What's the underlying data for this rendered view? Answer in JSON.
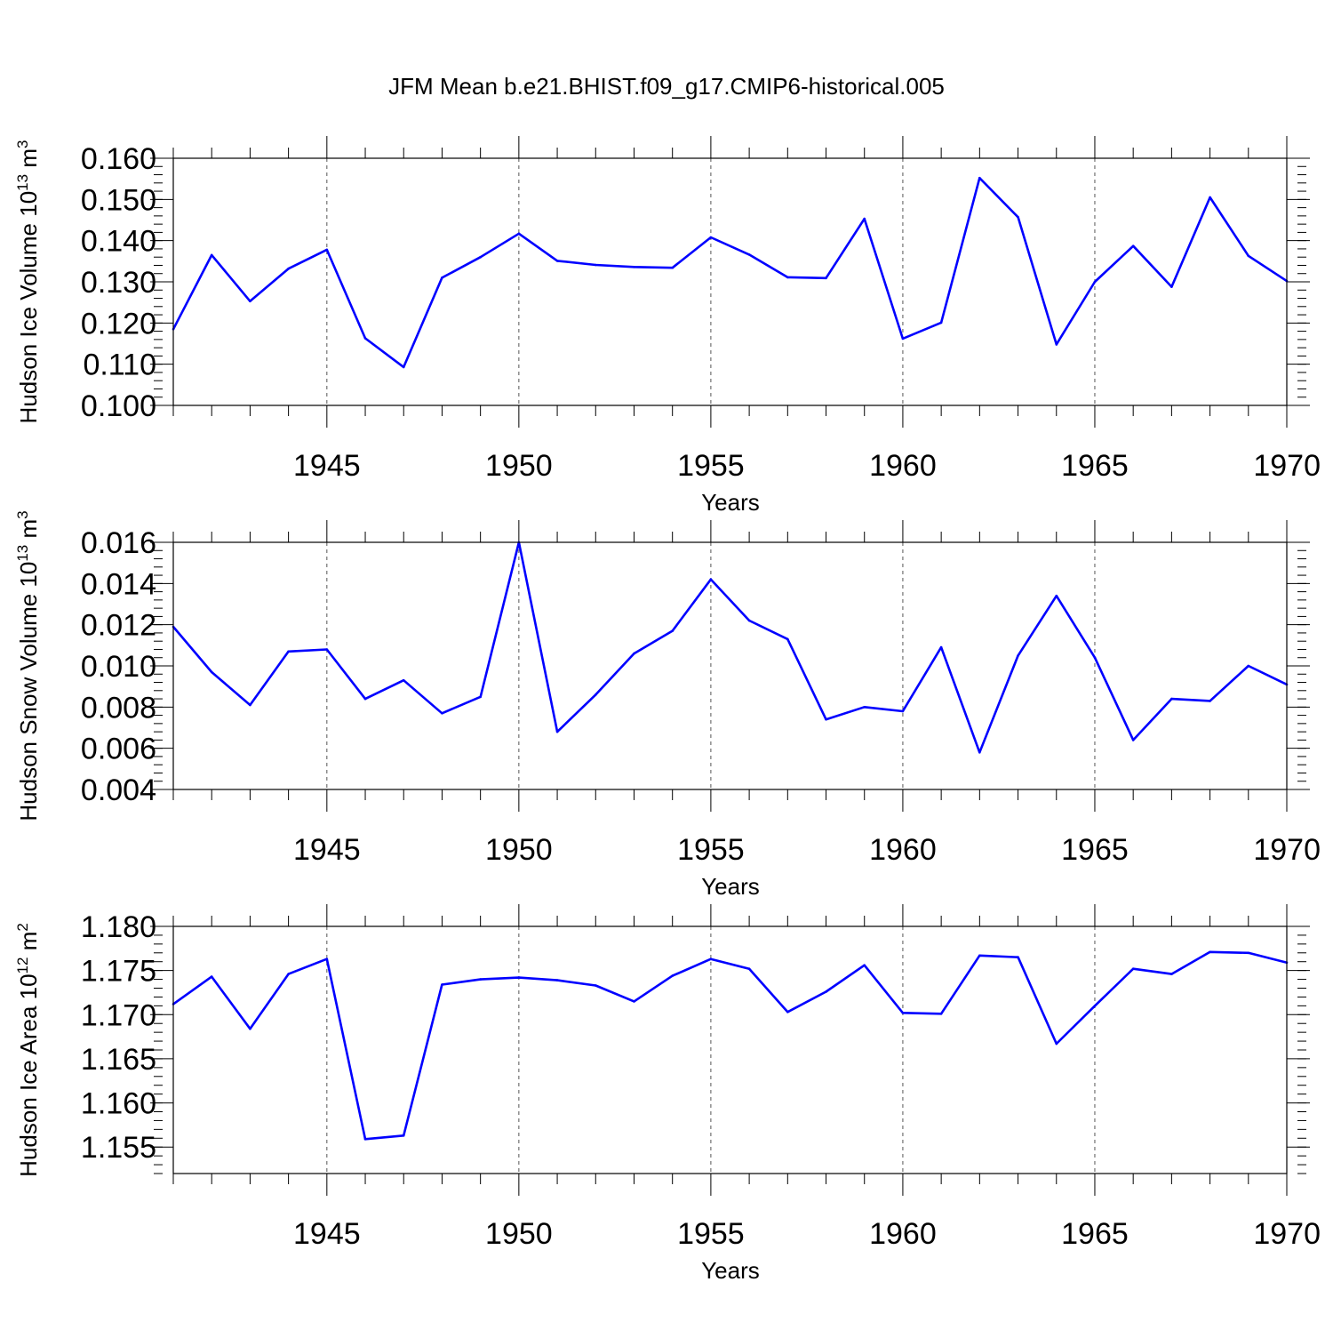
{
  "title": "JFM Mean b.e21.BHIST.f09_g17.CMIP6-historical.005",
  "line_color": "#0000ff",
  "chart_data": [
    {
      "type": "line",
      "ylabel_main": "Hudson Ice Volume 10",
      "ylabel_exp": "13",
      "ylabel_unit": " m",
      "ylabel_unit_exp": "3",
      "xlabel": "Years",
      "xlim": [
        1941,
        1970
      ],
      "ylim": [
        0.1,
        0.16
      ],
      "y_ticks": [
        0.1,
        0.11,
        0.12,
        0.13,
        0.14,
        0.15,
        0.16
      ],
      "y_tick_labels": [
        "0.100",
        "0.110",
        "0.120",
        "0.130",
        "0.140",
        "0.150",
        "0.160"
      ],
      "y_minor_step": 0.002,
      "x_ticks": [
        1945,
        1950,
        1955,
        1960,
        1965,
        1970
      ],
      "x_tick_labels": [
        "1945",
        "1950",
        "1955",
        "1960",
        "1965",
        "1970"
      ],
      "x": [
        1941,
        1942,
        1943,
        1944,
        1945,
        1946,
        1947,
        1948,
        1949,
        1950,
        1951,
        1952,
        1953,
        1954,
        1955,
        1956,
        1957,
        1958,
        1959,
        1960,
        1961,
        1962,
        1963,
        1964,
        1965,
        1966,
        1967,
        1968,
        1969,
        1970
      ],
      "values": [
        0.1185,
        0.1365,
        0.1253,
        0.1332,
        0.1378,
        0.1163,
        0.1093,
        0.131,
        0.136,
        0.1417,
        0.1351,
        0.1341,
        0.1336,
        0.1334,
        0.1408,
        0.1366,
        0.1311,
        0.1309,
        0.1453,
        0.1162,
        0.1201,
        0.1552,
        0.1457,
        0.1148,
        0.13,
        0.1387,
        0.1288,
        0.1505,
        0.1363,
        0.1302
      ]
    },
    {
      "type": "line",
      "ylabel_main": "Hudson Snow Volume 10",
      "ylabel_exp": "13",
      "ylabel_unit": " m",
      "ylabel_unit_exp": "3",
      "xlabel": "Years",
      "xlim": [
        1941,
        1970
      ],
      "ylim": [
        0.004,
        0.016
      ],
      "y_ticks": [
        0.004,
        0.006,
        0.008,
        0.01,
        0.012,
        0.014,
        0.016
      ],
      "y_tick_labels": [
        "0.004",
        "0.006",
        "0.008",
        "0.010",
        "0.012",
        "0.014",
        "0.016"
      ],
      "y_minor_step": 0.0004,
      "x_ticks": [
        1945,
        1950,
        1955,
        1960,
        1965,
        1970
      ],
      "x_tick_labels": [
        "1945",
        "1950",
        "1955",
        "1960",
        "1965",
        "1970"
      ],
      "x": [
        1941,
        1942,
        1943,
        1944,
        1945,
        1946,
        1947,
        1948,
        1949,
        1950,
        1951,
        1952,
        1953,
        1954,
        1955,
        1956,
        1957,
        1958,
        1959,
        1960,
        1961,
        1962,
        1963,
        1964,
        1965,
        1966,
        1967,
        1968,
        1969,
        1970
      ],
      "values": [
        0.0119,
        0.0097,
        0.0081,
        0.0107,
        0.0108,
        0.0084,
        0.0093,
        0.0077,
        0.0085,
        0.016,
        0.0068,
        0.0086,
        0.0106,
        0.0117,
        0.0142,
        0.0122,
        0.0113,
        0.0074,
        0.008,
        0.0078,
        0.0109,
        0.0058,
        0.0105,
        0.0134,
        0.0104,
        0.0064,
        0.0084,
        0.0083,
        0.01,
        0.0091
      ]
    },
    {
      "type": "line",
      "ylabel_main": "Hudson Ice Area 10",
      "ylabel_exp": "12",
      "ylabel_unit": " m",
      "ylabel_unit_exp": "2",
      "xlabel": "Years",
      "xlim": [
        1941,
        1970
      ],
      "ylim": [
        1.152,
        1.18
      ],
      "y_ticks": [
        1.155,
        1.16,
        1.165,
        1.17,
        1.175,
        1.18
      ],
      "y_tick_labels": [
        "1.155",
        "1.160",
        "1.165",
        "1.170",
        "1.175",
        "1.180"
      ],
      "y_minor_step": 0.001,
      "x_ticks": [
        1945,
        1950,
        1955,
        1960,
        1965,
        1970
      ],
      "x_tick_labels": [
        "1945",
        "1950",
        "1955",
        "1960",
        "1965",
        "1970"
      ],
      "x": [
        1941,
        1942,
        1943,
        1944,
        1945,
        1946,
        1947,
        1948,
        1949,
        1950,
        1951,
        1952,
        1953,
        1954,
        1955,
        1956,
        1957,
        1958,
        1959,
        1960,
        1961,
        1962,
        1963,
        1964,
        1965,
        1966,
        1967,
        1968,
        1969,
        1970
      ],
      "values": [
        1.1712,
        1.1743,
        1.1684,
        1.1746,
        1.1763,
        1.1559,
        1.1563,
        1.1734,
        1.174,
        1.1742,
        1.1739,
        1.1733,
        1.1715,
        1.1744,
        1.1763,
        1.1752,
        1.1703,
        1.1726,
        1.1756,
        1.1702,
        1.1701,
        1.1767,
        1.1765,
        1.1667,
        1.171,
        1.1752,
        1.1746,
        1.1771,
        1.177,
        1.1759
      ]
    }
  ]
}
